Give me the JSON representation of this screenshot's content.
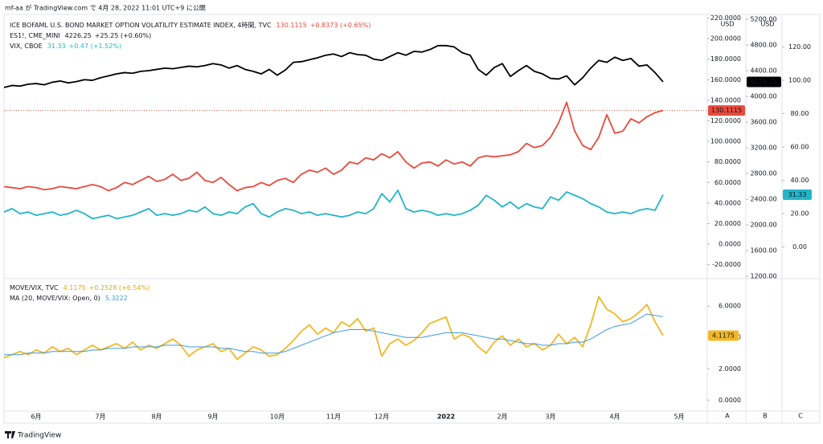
{
  "header": "mf-aa が TradingView.com で 4月 28, 2022 11:01 UTC+9 に公開",
  "currency": "USD",
  "axis_buttons": [
    "A",
    "B",
    "C"
  ],
  "footer": "TradingView",
  "chart_data": [
    {
      "type": "line",
      "ylim": [
        -32,
        222
      ],
      "yticks": [
        {
          "value": 220,
          "label": "220.0000"
        },
        {
          "value": 200,
          "label": "200.0000"
        },
        {
          "value": 180,
          "label": "180.0000"
        },
        {
          "value": 160,
          "label": "160.0000"
        },
        {
          "value": 140,
          "label": "140.0000"
        },
        {
          "value": 120,
          "label": "120.0000"
        },
        {
          "value": 100,
          "label": "100.0000"
        },
        {
          "value": 80,
          "label": "80.0000"
        },
        {
          "value": 60,
          "label": "60.0000"
        },
        {
          "value": 40,
          "label": "40.0000"
        },
        {
          "value": 20,
          "label": "20.0000"
        },
        {
          "value": 0,
          "label": "0.0000"
        },
        {
          "value": -20,
          "label": "-20.0000"
        }
      ],
      "y2lim": [
        1190,
        5250
      ],
      "y2ticks": [
        {
          "value": 5200,
          "label": "5200.00"
        },
        {
          "value": 4800,
          "label": "4800.00"
        },
        {
          "value": 4400,
          "label": "4400.00"
        },
        {
          "value": 4000,
          "label": "4000.00"
        },
        {
          "value": 3600,
          "label": "3600.00"
        },
        {
          "value": 3200,
          "label": "3200.00"
        },
        {
          "value": 2800,
          "label": "2800.00"
        },
        {
          "value": 2400,
          "label": "2400.00"
        },
        {
          "value": 2000,
          "label": "2000.00"
        },
        {
          "value": 1600,
          "label": "1600.00"
        },
        {
          "value": 1200,
          "label": "1200.00"
        }
      ],
      "y3lim": [
        -18,
        138.5
      ],
      "y3ticks": [
        {
          "value": 120,
          "label": "120.00"
        },
        {
          "value": 100,
          "label": "100.00"
        },
        {
          "value": 80,
          "label": "80.00"
        },
        {
          "value": 60,
          "label": "60.00"
        },
        {
          "value": 40,
          "label": "40.00"
        },
        {
          "value": 20,
          "label": "20.00"
        },
        {
          "value": 0,
          "label": "0.00"
        }
      ],
      "series": [
        {
          "name": "ICE BOFAML U.S. BOND MARKET OPTION VOLATILITY ESTIMATE INDEX, 4時間, TVC",
          "change": "+0.8373 (+0.65%)",
          "color": "#e84a3c",
          "axis": "y",
          "values": [
            56,
            55,
            54,
            56,
            55,
            53,
            54,
            56,
            55,
            54,
            56,
            58,
            56,
            52,
            55,
            60,
            58,
            62,
            66,
            61,
            63,
            68,
            62,
            64,
            70,
            62,
            60,
            65,
            58,
            52,
            55,
            56,
            60,
            57,
            62,
            64,
            60,
            68,
            72,
            70,
            74,
            68,
            72,
            80,
            78,
            84,
            82,
            88,
            84,
            90,
            80,
            74,
            79,
            80,
            76,
            82,
            78,
            80,
            76,
            84,
            86,
            85,
            86,
            87,
            90,
            98,
            94,
            96,
            104,
            118,
            138,
            110,
            96,
            92,
            104,
            126,
            108,
            110,
            122,
            118,
            124,
            128,
            130.1115,
            null,
            null,
            null,
            null,
            null
          ]
        },
        {
          "name": "ES1!, CME_MINI",
          "change": "+25.25 (+0.60%)",
          "color": "#000000",
          "axis": "y2",
          "values": [
            4140,
            4170,
            4160,
            4190,
            4200,
            4180,
            4220,
            4240,
            4210,
            4230,
            4260,
            4250,
            4290,
            4320,
            4350,
            4370,
            4360,
            4390,
            4400,
            4420,
            4440,
            4430,
            4450,
            4470,
            4460,
            4480,
            4510,
            4490,
            4440,
            4480,
            4420,
            4390,
            4350,
            4420,
            4330,
            4410,
            4530,
            4540,
            4570,
            4600,
            4640,
            4660,
            4620,
            4680,
            4650,
            4640,
            4580,
            4560,
            4620,
            4680,
            4640,
            4700,
            4690,
            4730,
            4790,
            4790,
            4770,
            4680,
            4640,
            4420,
            4330,
            4450,
            4510,
            4310,
            4400,
            4480,
            4390,
            4350,
            4280,
            4270,
            4320,
            4180,
            4290,
            4440,
            4560,
            4530,
            4610,
            4560,
            4590,
            4470,
            4490,
            4370,
            4226.25,
            null,
            null,
            null,
            null,
            null
          ]
        },
        {
          "name": "VIX, CBOE",
          "change": "+0.47 (+1.52%)",
          "color": "#22b5c8",
          "axis": "y3",
          "values": [
            21,
            23,
            20,
            21,
            19,
            20,
            21,
            19,
            20,
            22,
            20,
            17,
            18,
            19,
            17,
            18,
            19,
            21,
            23,
            19,
            20,
            19,
            20,
            22,
            21,
            24,
            20,
            19,
            21,
            20,
            24,
            26,
            20,
            18,
            21,
            23,
            22,
            20,
            21,
            19,
            20,
            19,
            18,
            19,
            21,
            20,
            23,
            32,
            27,
            34,
            23,
            21,
            22,
            21,
            19,
            20,
            19,
            20,
            22,
            25,
            31,
            28,
            24,
            27,
            23,
            26,
            24,
            23,
            30,
            28,
            33,
            31,
            29,
            26,
            24,
            21,
            20,
            21,
            20,
            22,
            23,
            22,
            31.33,
            null,
            null,
            null,
            null,
            null
          ]
        }
      ]
    },
    {
      "type": "line",
      "categories": [
        null,
        null,
        null,
        null,
        "6月",
        null,
        null,
        null,
        null,
        null,
        null,
        null,
        "7月",
        null,
        null,
        null,
        null,
        null,
        null,
        "8月",
        null,
        null,
        null,
        null,
        null,
        null,
        "9月",
        null,
        null,
        null,
        null,
        null,
        null,
        null,
        "10月",
        null,
        null,
        null,
        null,
        null,
        null,
        "11月",
        null,
        null,
        null,
        null,
        null,
        "12月",
        null,
        null,
        null,
        null,
        null,
        null,
        null,
        "2022",
        null,
        null,
        null,
        null,
        null,
        null,
        "2月",
        null,
        null,
        null,
        null,
        null,
        "3月",
        null,
        null,
        null,
        null,
        null,
        null,
        null,
        "4月",
        null,
        null,
        null,
        null,
        null,
        null,
        null,
        "5月",
        null,
        null,
        null
      ],
      "ylim": [
        -0.6,
        7.6
      ],
      "yticks": [
        {
          "value": 6,
          "label": "6.0000"
        },
        {
          "value": 4,
          "label": "4.0000"
        },
        {
          "value": 2,
          "label": "2.0000"
        },
        {
          "value": 0,
          "label": "0.0000"
        }
      ],
      "series": [
        {
          "name": "MOVE/VIX, TVC",
          "change": "+0.2528 (+6.54%)",
          "color": "#f2b824",
          "values": [
            2.7,
            2.9,
            3.1,
            2.9,
            3.2,
            3.0,
            3.4,
            3.1,
            3.3,
            2.9,
            3.2,
            3.5,
            3.2,
            3.4,
            3.6,
            3.3,
            3.7,
            3.2,
            3.5,
            3.3,
            3.6,
            3.9,
            3.5,
            2.8,
            3.2,
            3.4,
            3.6,
            3.1,
            3.3,
            2.6,
            3.0,
            3.4,
            3.2,
            2.8,
            2.9,
            3.3,
            3.8,
            4.4,
            4.8,
            4.2,
            4.6,
            4.3,
            5.0,
            4.7,
            5.2,
            4.4,
            4.6,
            2.8,
            3.6,
            3.9,
            3.5,
            3.8,
            4.3,
            4.9,
            5.1,
            5.3,
            3.9,
            4.2,
            4.0,
            3.4,
            3.0,
            3.7,
            4.1,
            3.5,
            3.9,
            3.4,
            3.6,
            3.2,
            3.5,
            4.2,
            3.6,
            4.0,
            3.4,
            4.8,
            6.6,
            5.8,
            5.5,
            5.0,
            5.2,
            5.6,
            6.1,
            5.0,
            4.1175,
            null,
            null,
            null,
            null,
            null
          ]
        },
        {
          "name": "MA (20, MOVE/VIX: Open, 0)",
          "color": "#3d9ae0",
          "values": [
            2.9,
            2.9,
            2.9,
            3.0,
            3.0,
            3.0,
            3.1,
            3.1,
            3.1,
            3.1,
            3.1,
            3.2,
            3.2,
            3.3,
            3.3,
            3.3,
            3.4,
            3.4,
            3.4,
            3.4,
            3.5,
            3.5,
            3.5,
            3.4,
            3.4,
            3.4,
            3.4,
            3.3,
            3.3,
            3.2,
            3.1,
            3.1,
            3.0,
            3.0,
            3.0,
            3.1,
            3.3,
            3.5,
            3.7,
            3.9,
            4.1,
            4.3,
            4.4,
            4.5,
            4.5,
            4.5,
            4.4,
            4.3,
            4.2,
            4.1,
            4.0,
            4.0,
            4.0,
            4.1,
            4.2,
            4.3,
            4.3,
            4.3,
            4.2,
            4.1,
            4.0,
            3.9,
            3.9,
            3.8,
            3.7,
            3.6,
            3.6,
            3.5,
            3.5,
            3.6,
            3.6,
            3.7,
            3.7,
            3.9,
            4.2,
            4.5,
            4.7,
            4.8,
            4.9,
            5.2,
            5.5,
            5.4,
            5.3222,
            null,
            null,
            null,
            null,
            null
          ]
        }
      ]
    }
  ]
}
